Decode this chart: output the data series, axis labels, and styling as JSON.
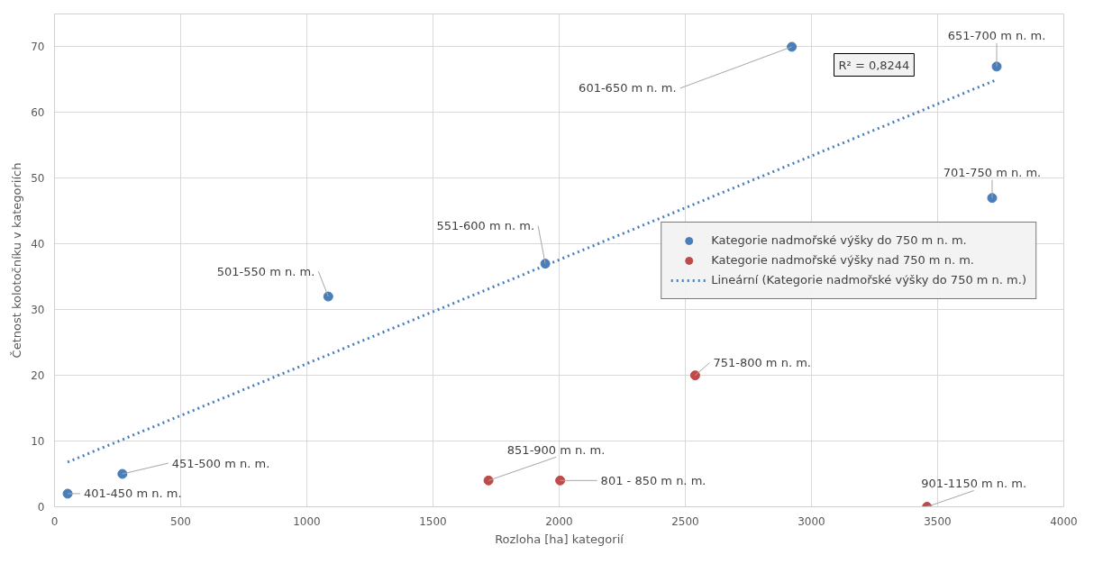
{
  "chart_data": {
    "type": "scatter",
    "xlabel": "Rozloha [ha] kategorií",
    "ylabel": "Četnost kolotočníku v kategoriích",
    "xlim": [
      0,
      4000
    ],
    "xticks": [
      0,
      500,
      1000,
      1500,
      2000,
      2500,
      3000,
      3500,
      4000
    ],
    "ylim": [
      0,
      75
    ],
    "yticks": [
      0,
      10,
      20,
      30,
      40,
      50,
      60,
      70
    ],
    "grid": true,
    "legend": "right",
    "marker": "circle",
    "series": [
      {
        "name": "Kategorie nadmořské výšky do 750 m n. m.",
        "color": "#4a7ebb",
        "x": [
          52,
          269,
          1085,
          1945,
          2922,
          3734,
          3716
        ],
        "values": [
          2,
          5,
          32,
          37,
          70,
          67,
          47
        ]
      },
      {
        "name": "Kategorie nadmořské výšky nad 750 m n. m.",
        "color": "#be4b48",
        "x": [
          2539,
          2004,
          1720,
          3458
        ],
        "values": [
          20,
          4,
          4,
          0
        ]
      },
      {
        "name": "Lineární (Kategorie nadmořské výšky do 750 m n. m.)",
        "type": "line",
        "line_style": "dotted",
        "marker": "none",
        "color": "#4a7ebb",
        "x": [
          52,
          3734
        ],
        "values": [
          6.8,
          65
        ]
      }
    ],
    "annotations": [
      {
        "text": "401-450 m n. m.",
        "x": 52,
        "y": 2
      },
      {
        "text": "451-500 m n. m.",
        "x": 269,
        "y": 5
      },
      {
        "text": "501-550 m n. m.",
        "x": 1085,
        "y": 32
      },
      {
        "text": "551-600 m n. m.",
        "x": 1945,
        "y": 37
      },
      {
        "text": "601-650 m n. m.",
        "x": 2922,
        "y": 70
      },
      {
        "text": "651-700 m n. m.",
        "x": 3734,
        "y": 67
      },
      {
        "text": "701-750 m n. m.",
        "x": 3716,
        "y": 47
      },
      {
        "text": "751-800 m n. m.",
        "x": 2539,
        "y": 20
      },
      {
        "text": "801 - 850 m n. m.",
        "x": 2004,
        "y": 4
      },
      {
        "text": "851-900 m n. m.",
        "x": 1720,
        "y": 4
      },
      {
        "text": "901-1150 m n. m.",
        "x": 3458,
        "y": 0
      },
      "R² = 0,8244"
    ]
  }
}
